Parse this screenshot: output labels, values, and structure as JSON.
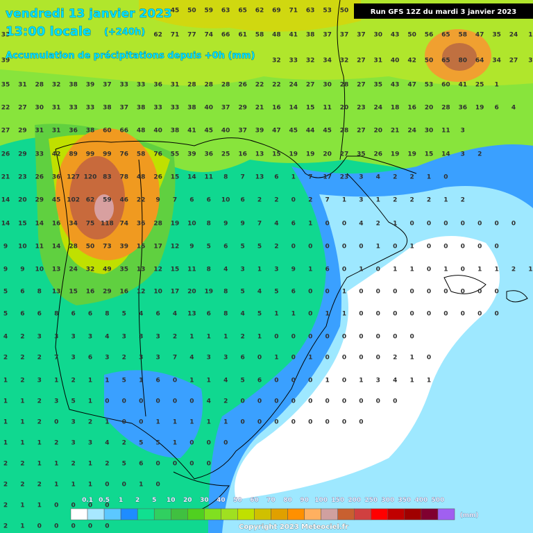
{
  "header": {
    "title": "vendredi 13 janvier 2023",
    "time": "13:00 locale",
    "lead": "(+240h)",
    "subtitle": "Accumulation de précipitations depuis +0h (mm)",
    "run": "Run GFS 12Z du mardi 3 janvier 2023"
  },
  "grid": {
    "rows": [
      [
        null,
        null,
        null,
        null,
        null,
        null,
        null,
        null,
        null,
        null,
        45,
        50,
        59,
        63,
        65,
        62,
        69,
        71,
        63,
        53,
        50
      ],
      [
        33,
        null,
        null,
        null,
        null,
        null,
        null,
        null,
        null,
        62,
        71,
        77,
        74,
        66,
        61,
        58,
        48,
        41,
        38,
        37,
        37,
        37,
        30,
        43,
        50,
        56,
        65,
        58,
        47,
        35,
        24,
        1
      ],
      [
        39,
        null,
        null,
        null,
        null,
        null,
        null,
        null,
        null,
        null,
        null,
        null,
        null,
        null,
        null,
        null,
        32,
        33,
        32,
        34,
        32,
        27,
        31,
        40,
        42,
        50,
        65,
        80,
        64,
        34,
        27,
        3
      ],
      [
        35,
        31,
        28,
        32,
        38,
        39,
        37,
        33,
        33,
        36,
        31,
        28,
        28,
        28,
        26,
        22,
        22,
        24,
        27,
        30,
        28,
        27,
        35,
        43,
        47,
        53,
        60,
        41,
        25,
        1
      ],
      [
        22,
        27,
        30,
        31,
        33,
        33,
        38,
        37,
        38,
        33,
        33,
        38,
        40,
        37,
        29,
        21,
        16,
        14,
        15,
        11,
        20,
        23,
        24,
        18,
        16,
        20,
        28,
        36,
        19,
        6,
        4
      ],
      [
        27,
        29,
        31,
        31,
        36,
        38,
        60,
        66,
        48,
        40,
        38,
        41,
        45,
        40,
        37,
        39,
        47,
        45,
        44,
        45,
        28,
        27,
        20,
        21,
        24,
        30,
        11,
        3
      ],
      [
        26,
        29,
        33,
        42,
        89,
        99,
        99,
        76,
        58,
        76,
        55,
        39,
        36,
        25,
        16,
        13,
        15,
        19,
        19,
        20,
        27,
        35,
        26,
        19,
        19,
        15,
        14,
        3,
        2
      ],
      [
        21,
        23,
        26,
        36,
        127,
        120,
        83,
        78,
        48,
        26,
        15,
        14,
        11,
        8,
        7,
        13,
        6,
        1,
        7,
        17,
        23,
        3,
        4,
        2,
        2,
        1,
        0
      ],
      [
        14,
        20,
        29,
        45,
        102,
        62,
        59,
        46,
        22,
        9,
        7,
        6,
        6,
        10,
        6,
        2,
        2,
        0,
        2,
        7,
        1,
        3,
        1,
        2,
        2,
        2,
        1,
        2
      ],
      [
        14,
        15,
        14,
        16,
        34,
        75,
        118,
        74,
        36,
        28,
        19,
        10,
        8,
        9,
        9,
        7,
        4,
        6,
        1,
        0,
        0,
        4,
        2,
        1,
        0,
        0,
        0,
        0,
        0,
        0,
        0
      ],
      [
        9,
        10,
        11,
        14,
        28,
        50,
        73,
        39,
        15,
        17,
        12,
        9,
        5,
        6,
        5,
        5,
        2,
        0,
        0,
        0,
        0,
        0,
        1,
        0,
        1,
        0,
        0,
        0,
        0,
        0
      ],
      [
        9,
        9,
        10,
        13,
        24,
        32,
        49,
        35,
        13,
        12,
        15,
        11,
        8,
        4,
        3,
        1,
        3,
        9,
        1,
        6,
        0,
        1,
        0,
        1,
        1,
        0,
        1,
        0,
        1,
        1,
        2,
        1
      ],
      [
        5,
        6,
        8,
        13,
        15,
        16,
        29,
        16,
        12,
        10,
        17,
        20,
        19,
        8,
        5,
        4,
        5,
        6,
        0,
        0,
        1,
        0,
        0,
        0,
        0,
        0,
        0,
        0,
        0,
        0
      ],
      [
        5,
        6,
        6,
        8,
        6,
        6,
        8,
        5,
        4,
        6,
        4,
        13,
        6,
        8,
        4,
        5,
        1,
        1,
        0,
        1,
        1,
        0,
        0,
        0,
        0,
        0,
        0,
        0,
        0,
        0
      ],
      [
        4,
        2,
        3,
        3,
        3,
        3,
        4,
        3,
        3,
        3,
        2,
        1,
        1,
        1,
        2,
        1,
        0,
        0,
        0,
        0,
        0,
        0,
        0,
        0,
        0
      ],
      [
        2,
        2,
        2,
        7,
        3,
        6,
        3,
        2,
        3,
        3,
        7,
        4,
        3,
        3,
        6,
        0,
        1,
        0,
        1,
        0,
        0,
        0,
        0,
        2,
        1,
        0
      ],
      [
        1,
        2,
        3,
        1,
        2,
        1,
        1,
        5,
        1,
        6,
        0,
        1,
        1,
        4,
        5,
        6,
        0,
        0,
        0,
        1,
        0,
        1,
        3,
        4,
        1,
        1
      ],
      [
        1,
        1,
        2,
        3,
        5,
        1,
        0,
        0,
        0,
        0,
        0,
        0,
        4,
        2,
        0,
        0,
        0,
        0,
        0,
        0,
        0,
        0,
        0,
        0
      ],
      [
        1,
        1,
        2,
        0,
        3,
        2,
        1,
        0,
        0,
        1,
        1,
        1,
        1,
        1,
        0,
        0,
        0,
        0,
        0,
        0,
        0,
        0
      ],
      [
        1,
        1,
        1,
        2,
        3,
        3,
        4,
        2,
        5,
        5,
        1,
        0,
        0,
        0
      ],
      [
        2,
        2,
        1,
        1,
        2,
        1,
        2,
        5,
        6,
        0,
        0,
        0,
        0
      ],
      [
        2,
        2,
        2,
        1,
        1,
        1,
        0,
        0,
        1,
        0
      ],
      [
        2,
        1,
        1,
        0,
        0,
        0,
        0
      ],
      [
        2,
        1,
        0,
        0,
        0,
        0,
        0
      ]
    ]
  },
  "legend": {
    "unit": "(mm)",
    "colors": [
      "#ffffff",
      "#a8e8ff",
      "#5cc8ff",
      "#1e8cff",
      "#10e090",
      "#30d060",
      "#40c040",
      "#50d020",
      "#80e020",
      "#a0e020",
      "#c0e000",
      "#d0c000",
      "#e0a000",
      "#ff9000",
      "#ffb060",
      "#d0a0a0",
      "#c86030",
      "#d04040",
      "#ff0000",
      "#c00000",
      "#a00000",
      "#800030",
      "#a060f0"
    ],
    "labels": [
      0.1,
      0.5,
      1,
      2,
      5,
      10,
      20,
      30,
      40,
      50,
      60,
      70,
      80,
      90,
      100,
      150,
      200,
      250,
      300,
      350,
      400,
      500
    ]
  },
  "footer": {
    "copyright": "Copyright 2023 Meteociel.fr"
  }
}
